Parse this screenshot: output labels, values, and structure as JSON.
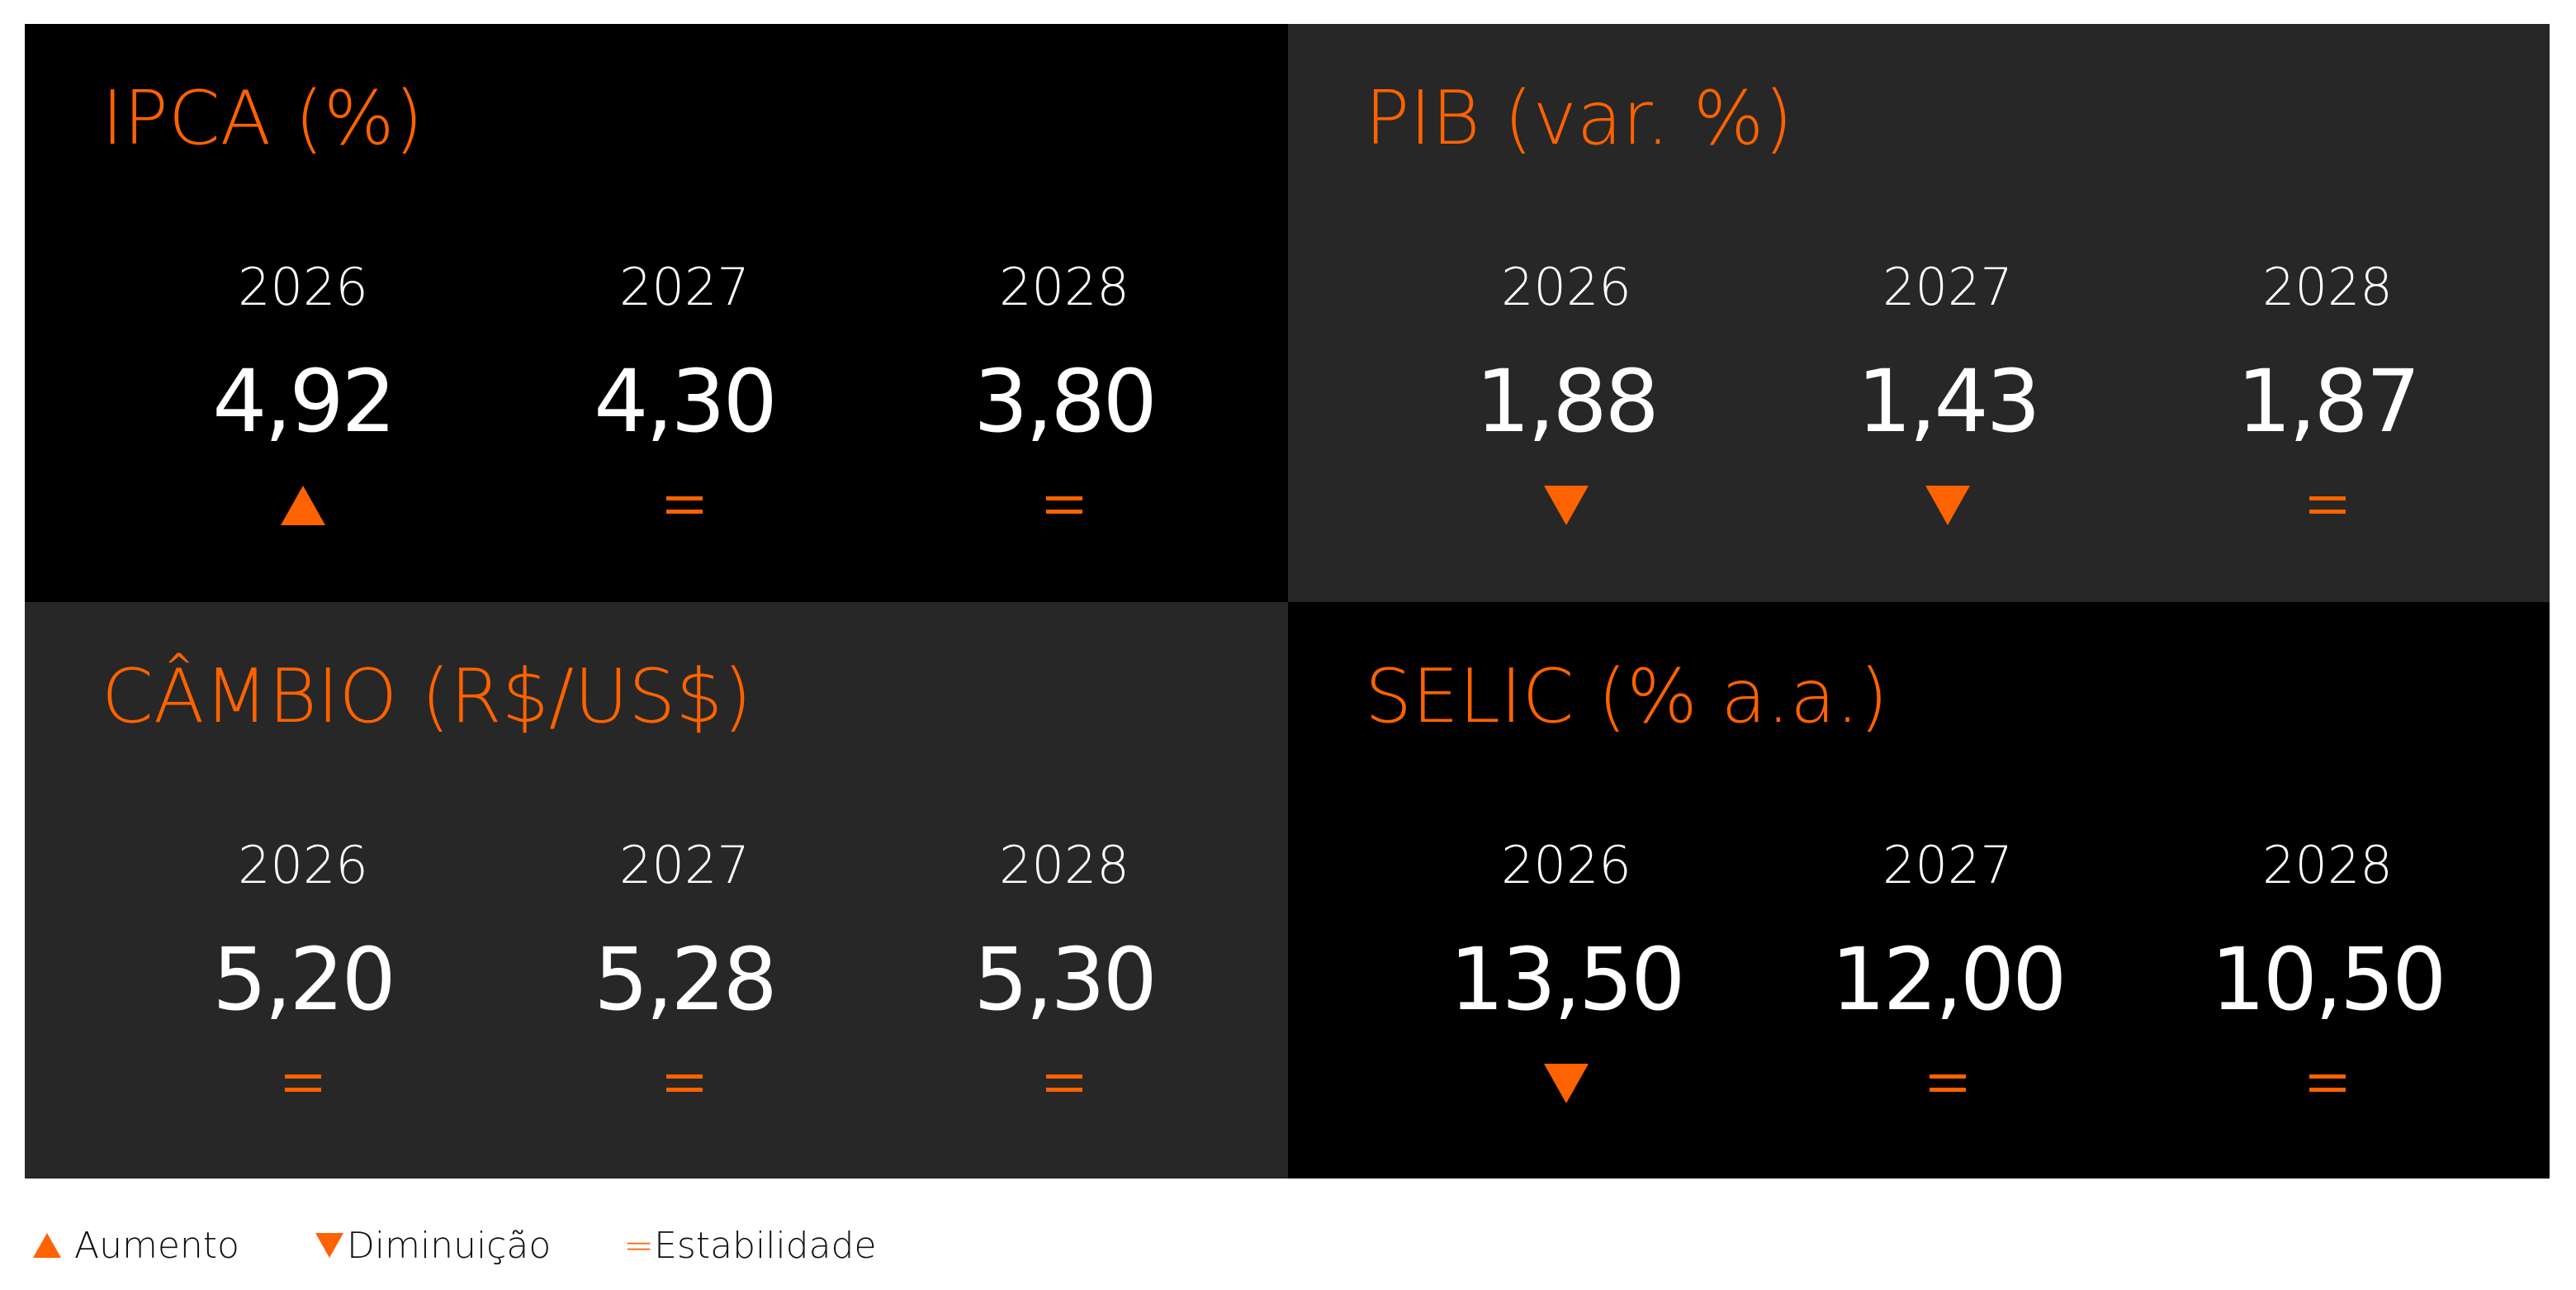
{
  "colors": {
    "accent": "#ff6200",
    "panel_dark": "#000000",
    "panel_gray": "#272727",
    "value_text": "#ffffff"
  },
  "panels": [
    {
      "title": "IPCA (%)",
      "background": "dark",
      "columns": [
        {
          "year": "2026",
          "value": "4,92",
          "indicator": "up-triangle-icon"
        },
        {
          "year": "2027",
          "value": "4,30",
          "indicator": "equals-icon"
        },
        {
          "year": "2028",
          "value": "3,80",
          "indicator": "equals-icon"
        }
      ]
    },
    {
      "title": "PIB (var. %)",
      "background": "gray",
      "columns": [
        {
          "year": "2026",
          "value": "1,88",
          "indicator": "down-triangle-icon"
        },
        {
          "year": "2027",
          "value": "1,43",
          "indicator": "down-triangle-icon"
        },
        {
          "year": "2028",
          "value": "1,87",
          "indicator": "equals-icon"
        }
      ]
    },
    {
      "title": "CÂMBIO (R$/US$)",
      "background": "gray",
      "columns": [
        {
          "year": "2026",
          "value": "5,20",
          "indicator": "equals-icon"
        },
        {
          "year": "2027",
          "value": "5,28",
          "indicator": "equals-icon"
        },
        {
          "year": "2028",
          "value": "5,30",
          "indicator": "equals-icon"
        }
      ]
    },
    {
      "title": "SELIC (% a.a.)",
      "background": "dark",
      "columns": [
        {
          "year": "2026",
          "value": "13,50",
          "indicator": "down-triangle-icon"
        },
        {
          "year": "2027",
          "value": "12,00",
          "indicator": "equals-icon"
        },
        {
          "year": "2028",
          "value": "10,50",
          "indicator": "equals-icon"
        }
      ]
    }
  ],
  "legend": {
    "increase_label": "Aumento",
    "decrease_label": "Diminuição",
    "stable_label": "=Estabilidade",
    "increase_icon": "up-triangle-icon",
    "decrease_icon": "down-triangle-icon"
  }
}
